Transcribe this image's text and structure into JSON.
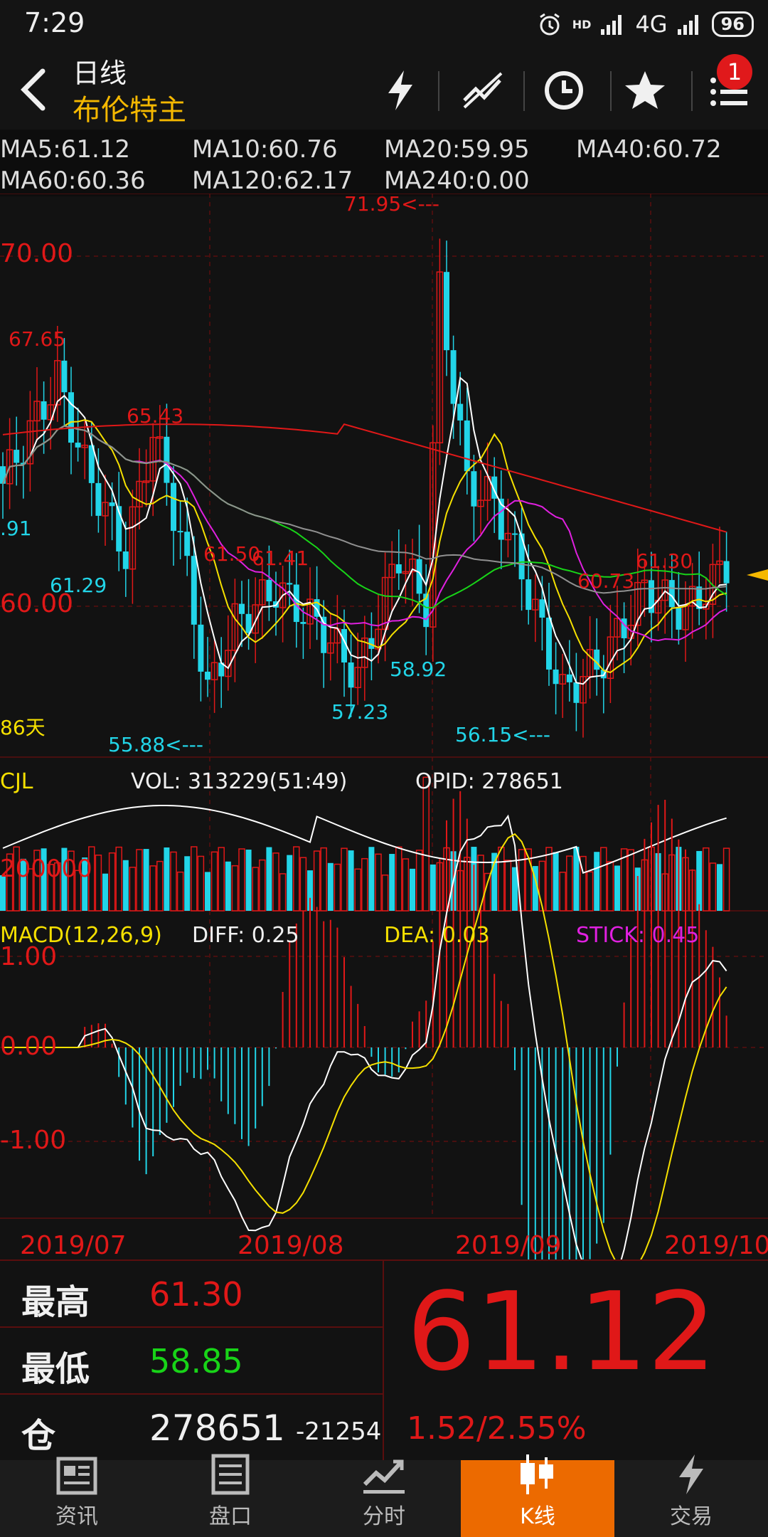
{
  "status": {
    "time": "7:29",
    "network": "4G",
    "battery": "96",
    "hd": "HD"
  },
  "header": {
    "title": "日线",
    "subtitle": "布伦特主",
    "notification_count": "1"
  },
  "ma_legend": [
    {
      "text": "MA5:61.12",
      "color": "#ffffff"
    },
    {
      "text": "MA10:60.76",
      "color": "#f5e000"
    },
    {
      "text": "MA20:59.95",
      "color": "#e020e0"
    },
    {
      "text": "MA40:60.72",
      "color": "#18d418"
    },
    {
      "text": "MA60:60.36",
      "color": "#909090"
    },
    {
      "text": "MA120:62.17",
      "color": "#e01818"
    },
    {
      "text": "MA240:0.00",
      "color": "#f08000"
    }
  ],
  "price_chart": {
    "axis_labels": [
      "70.00",
      "60.00"
    ],
    "annotations": {
      "max": "71.95<---",
      "min": "55.88<---",
      "p6765": "67.65",
      "p6543": "65.43",
      "p6150": "61.50",
      "p6141": "61.41",
      "p6130": "61.30",
      "p6073": "60.73",
      "p6129": "61.29",
      "p5892": "58.92",
      "p5723": "57.23",
      "p5615": "56.15<---",
      "p91": ".91",
      "days": "86天"
    }
  },
  "volume_panel": {
    "name": "CJL",
    "vol": "VOL: 313229(51:49)",
    "opid": "OPID: 278651",
    "axis": "200000"
  },
  "macd_panel": {
    "name": "MACD(12,26,9)",
    "diff": "DIFF: 0.25",
    "dea": "DEA: 0.03",
    "stick": "STICK: 0.45",
    "axis": [
      "1.00",
      "0.00",
      "-1.00"
    ]
  },
  "dates": [
    "2019/07",
    "2019/08",
    "2019/09",
    "2019/10"
  ],
  "info": {
    "high_label": "最高",
    "high": "61.30",
    "low_label": "最低",
    "low": "58.85",
    "oi_label": "仓",
    "oi": "278651",
    "oi_change": "-21254",
    "last": "61.12",
    "change": "1.52/2.55%"
  },
  "nav": [
    {
      "label": "资讯",
      "icon": "news-icon"
    },
    {
      "label": "盘口",
      "icon": "orderbook-icon"
    },
    {
      "label": "分时",
      "icon": "timeshare-icon"
    },
    {
      "label": "K线",
      "icon": "candlestick-icon"
    },
    {
      "label": "交易",
      "icon": "trade-icon"
    }
  ],
  "colors": {
    "up": "#e01818",
    "down": "#22d5e8",
    "accent": "#ec6a00",
    "title": "#f5b800"
  }
}
